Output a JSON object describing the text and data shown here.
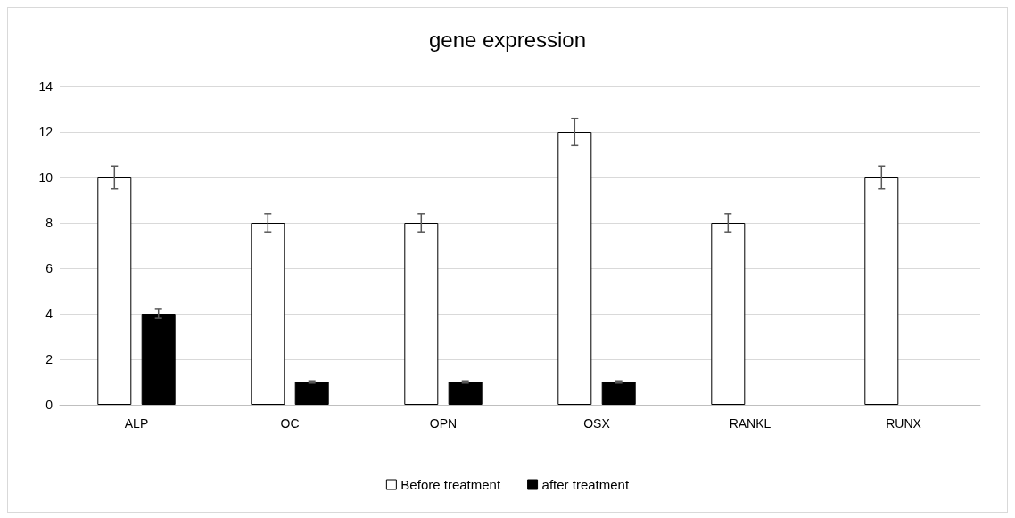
{
  "chart_data": {
    "type": "bar",
    "title": "gene expression",
    "categories": [
      "ALP",
      "OC",
      "OPN",
      "OSX",
      "RANKL",
      "RUNX"
    ],
    "series": [
      {
        "name": "Before treatment",
        "color": "#ffffff",
        "values": [
          10,
          8,
          8,
          12,
          8,
          10
        ],
        "errors": [
          0.5,
          0.4,
          0.4,
          0.6,
          0.4,
          0.5
        ]
      },
      {
        "name": "after treatment",
        "color": "#000000",
        "values": [
          4,
          1,
          1,
          1,
          null,
          null
        ],
        "errors": [
          0.2,
          0.05,
          0.05,
          0.05,
          null,
          null
        ]
      }
    ],
    "ylim": [
      0,
      14
    ],
    "yticks": [
      0,
      2,
      4,
      6,
      8,
      10,
      12,
      14
    ],
    "grid": "y",
    "legend": "bottom"
  }
}
